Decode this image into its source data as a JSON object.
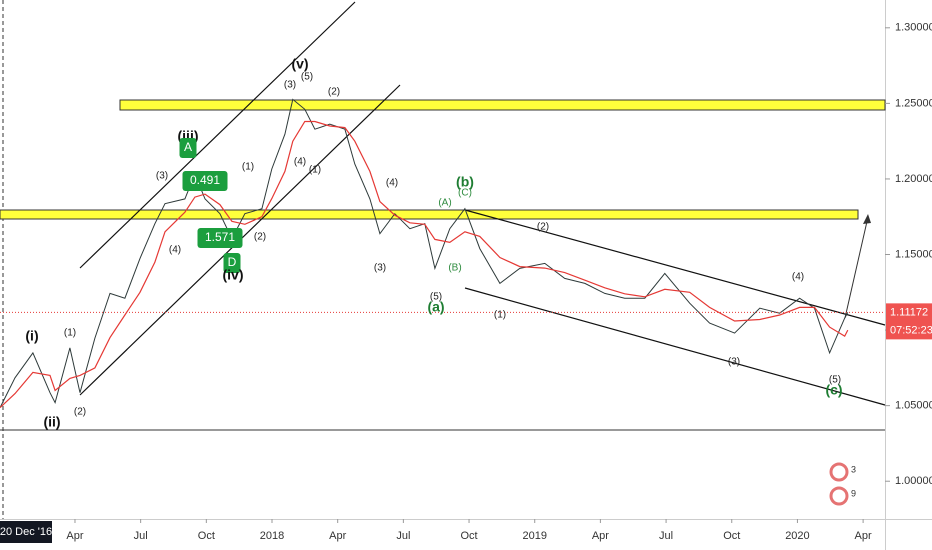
{
  "chart_data": {
    "type": "line",
    "x": [
      -0.42,
      0.26,
      1.08,
      1.86,
      2.09,
      2.77,
      3.23,
      3.91,
      4.6,
      5.28,
      5.97,
      6.65,
      7.11,
      8.02,
      8.48,
      8.94,
      9.62,
      10.17,
      10.76,
      11.54,
      11.99,
      12.59,
      12.95,
      13.5,
      13.96,
      14.64,
      15.33,
      15.78,
      16.47,
      16.93,
      17.61,
      18.3,
      18.98,
      19.44,
      20.12,
      20.81,
      21.49,
      22.41,
      23.32,
      24.46,
      25.37,
      26.29,
      27.2,
      28.11,
      29.03,
      29.94,
      31.08,
      31.99,
      33.13,
      34.28,
      35.19,
      36.1,
      36.78,
      37.47,
      38.16,
      38.3
    ],
    "series": [
      {
        "color": "#2e3a3a",
        "values": [
          1.0487,
          1.0684,
          1.0849,
          1.0586,
          1.052,
          1.0882,
          1.0586,
          1.0947,
          1.1243,
          1.1211,
          1.1474,
          1.1704,
          1.1836,
          1.1868,
          1.2033,
          1.1868,
          1.177,
          1.1605,
          1.177,
          1.1803,
          1.2066,
          1.2296,
          1.2526,
          1.2461,
          1.2329,
          1.2362,
          1.2329,
          1.2099,
          1.1868,
          1.1638,
          1.177,
          1.1671,
          1.1704,
          1.1408,
          1.1671,
          1.1803,
          1.1539,
          1.1309,
          1.1408,
          1.1441,
          1.1342,
          1.1309,
          1.1243,
          1.1211,
          1.1211,
          1.1375,
          1.1178,
          1.1046,
          1.098,
          1.1145,
          1.1112,
          1.1211,
          1.1145,
          1.0849,
          1.1079,
          1.11172
        ]
      },
      {
        "color": "#e53935",
        "values": [
          1.0487,
          1.058,
          1.072,
          1.07,
          1.06,
          1.068,
          1.07,
          1.075,
          1.095,
          1.11,
          1.125,
          1.145,
          1.165,
          1.178,
          1.188,
          1.19,
          1.183,
          1.172,
          1.17,
          1.175,
          1.187,
          1.205,
          1.225,
          1.238,
          1.238,
          1.235,
          1.234,
          1.225,
          1.205,
          1.185,
          1.176,
          1.171,
          1.17,
          1.16,
          1.158,
          1.165,
          1.162,
          1.148,
          1.142,
          1.141,
          1.138,
          1.133,
          1.128,
          1.124,
          1.122,
          1.127,
          1.125,
          1.115,
          1.106,
          1.107,
          1.11,
          1.115,
          1.115,
          1.102,
          1.096,
          1.1
        ]
      }
    ],
    "xlim": [
      -0.4247,
      40
    ],
    "xticks": [
      {
        "value": 3,
        "label": "Apr"
      },
      {
        "value": 6,
        "label": "Jul"
      },
      {
        "value": 9,
        "label": "Oct"
      },
      {
        "value": 12,
        "label": "2018"
      },
      {
        "value": 15,
        "label": "Apr"
      },
      {
        "value": 18,
        "label": "Jul"
      },
      {
        "value": 21,
        "label": "Oct"
      },
      {
        "value": 24,
        "label": "2019"
      },
      {
        "value": 27,
        "label": "Apr"
      },
      {
        "value": 30,
        "label": "Jul"
      },
      {
        "value": 33,
        "label": "Oct"
      },
      {
        "value": 36,
        "label": "2020"
      },
      {
        "value": 39,
        "label": "Apr"
      }
    ],
    "ylim": [
      0.975,
      1.3184
    ],
    "yticks": [
      {
        "value": 1.3,
        "label": "1.30000"
      },
      {
        "value": 1.25,
        "label": "1.25000"
      },
      {
        "value": 1.2,
        "label": "1.20000"
      },
      {
        "value": 1.15,
        "label": "1.15000"
      },
      {
        "value": 1.1,
        "label": "1.10000"
      },
      {
        "value": 1.05,
        "label": "1.05000"
      },
      {
        "value": 1.0,
        "label": "1.00000"
      }
    ],
    "last_price": {
      "value": 1.11172,
      "label": "1.11172"
    },
    "countdown": "07:52:23",
    "crosshair_label": "20 Dec '16",
    "wave_labels": [
      "(i)",
      "(1)",
      "(ii)",
      "(2)",
      "(iii)",
      "(3)",
      "(4)",
      "A",
      "0.491",
      "1.571",
      "D",
      "(iv)",
      "(1)",
      "(2)",
      "(3)",
      "(5)",
      "(v)",
      "(4)",
      "(1)",
      "(2)",
      "(4)",
      "(3)",
      "(b)",
      "(A)",
      "(C)",
      "(B)",
      "(5)",
      "(a)",
      "(1)",
      "(2)",
      "(4)",
      "(3)",
      "(5)",
      "(c)"
    ],
    "badges": [
      "3",
      "9"
    ]
  }
}
